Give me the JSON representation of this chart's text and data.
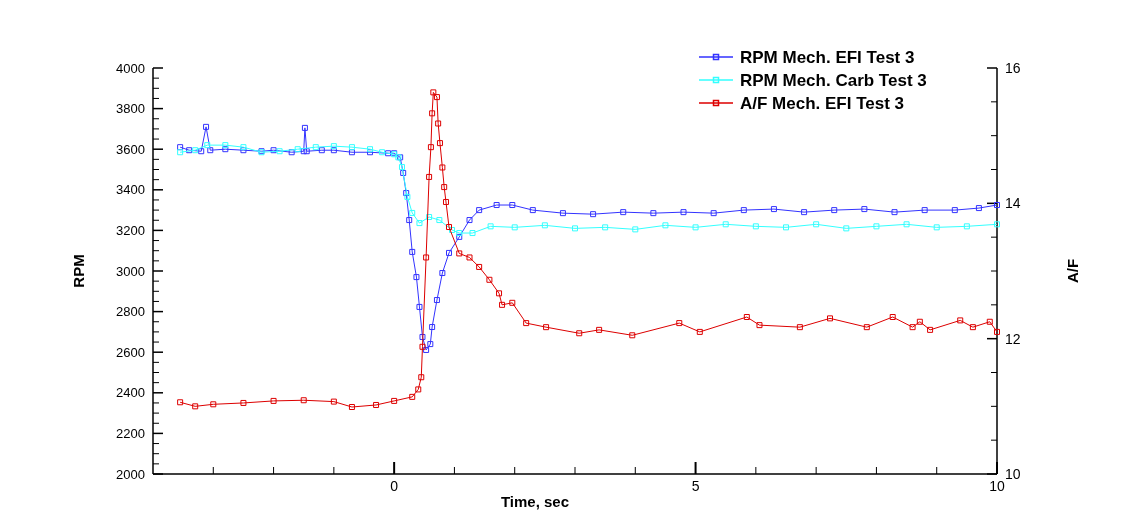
{
  "chart_data": {
    "type": "line",
    "xlabel": "Time, sec",
    "ylabel": "RPM",
    "y2label": "A/F",
    "xlim": [
      -4,
      10
    ],
    "xticks": [
      {
        "value": -3,
        "label": null
      },
      {
        "value": -2,
        "label": null
      },
      {
        "value": -1,
        "label": null
      },
      0,
      {
        "value": 1,
        "label": null
      },
      {
        "value": 2,
        "label": null
      },
      {
        "value": 3,
        "label": null
      },
      {
        "value": 4,
        "label": null
      },
      5,
      {
        "value": 6,
        "label": null
      },
      {
        "value": 7,
        "label": null
      },
      {
        "value": 8,
        "label": null
      },
      {
        "value": 9,
        "label": null
      },
      10
    ],
    "ylim": [
      2000,
      4000
    ],
    "yticks": [
      2000,
      {
        "value": 2050,
        "label": null
      },
      {
        "value": 2100,
        "label": null
      },
      {
        "value": 2150,
        "label": null
      },
      2200,
      {
        "value": 2250,
        "label": null
      },
      {
        "value": 2300,
        "label": null
      },
      {
        "value": 2350,
        "label": null
      },
      2400,
      {
        "value": 2450,
        "label": null
      },
      {
        "value": 2500,
        "label": null
      },
      {
        "value": 2550,
        "label": null
      },
      2600,
      {
        "value": 2650,
        "label": null
      },
      {
        "value": 2700,
        "label": null
      },
      {
        "value": 2750,
        "label": null
      },
      2800,
      {
        "value": 2850,
        "label": null
      },
      {
        "value": 2900,
        "label": null
      },
      {
        "value": 2950,
        "label": null
      },
      3000,
      {
        "value": 3050,
        "label": null
      },
      {
        "value": 3100,
        "label": null
      },
      {
        "value": 3150,
        "label": null
      },
      3200,
      {
        "value": 3250,
        "label": null
      },
      {
        "value": 3300,
        "label": null
      },
      {
        "value": 3350,
        "label": null
      },
      3400,
      {
        "value": 3450,
        "label": null
      },
      {
        "value": 3500,
        "label": null
      },
      {
        "value": 3550,
        "label": null
      },
      3600,
      {
        "value": 3650,
        "label": null
      },
      {
        "value": 3700,
        "label": null
      },
      {
        "value": 3750,
        "label": null
      },
      3800,
      {
        "value": 3850,
        "label": null
      },
      {
        "value": 3900,
        "label": null
      },
      {
        "value": 3950,
        "label": null
      },
      4000
    ],
    "y2lim": [
      10,
      16
    ],
    "y2ticks": [
      10,
      {
        "value": 10.5,
        "label": null
      },
      {
        "value": 11,
        "label": null
      },
      {
        "value": 11.5,
        "label": null
      },
      12,
      {
        "value": 12.5,
        "label": null
      },
      {
        "value": 13,
        "label": null
      },
      {
        "value": 13.5,
        "label": null
      },
      14,
      {
        "value": 14.5,
        "label": null
      },
      {
        "value": 15,
        "label": null
      },
      {
        "value": 15.5,
        "label": null
      },
      16
    ],
    "grid": false,
    "legend": "top right",
    "marker": "square",
    "line_style": "solid",
    "series": [
      {
        "name": "RPM Mech. EFI Test 3",
        "color": "#3333ff",
        "x": [
          -3.55,
          -3.4,
          -3.2,
          -3.12,
          -3.05,
          -2.8,
          -2.5,
          -2.2,
          -2.0,
          -1.7,
          -1.5,
          -1.48,
          -1.45,
          -1.2,
          -1.0,
          -0.7,
          -0.4,
          -0.1,
          0.0,
          0.1,
          0.15,
          0.2,
          0.25,
          0.3,
          0.37,
          0.42,
          0.47,
          0.53,
          0.6,
          0.63,
          0.71,
          0.8,
          0.91,
          1.08,
          1.25,
          1.41,
          1.7,
          1.96,
          2.3,
          2.8,
          3.3,
          3.8,
          4.3,
          4.8,
          5.3,
          5.8,
          6.3,
          6.8,
          7.3,
          7.8,
          8.3,
          8.8,
          9.3,
          9.7,
          10
        ],
        "values": [
          3610,
          3595,
          3590,
          3710,
          3595,
          3600,
          3595,
          3590,
          3595,
          3585,
          3590,
          3705,
          3590,
          3595,
          3595,
          3585,
          3585,
          3580,
          3580,
          3560,
          3483,
          3384,
          3251,
          3094,
          2970,
          2823,
          2675,
          2611,
          2640,
          2724,
          2857,
          2990,
          3089,
          3168,
          3251,
          3300,
          3325,
          3325,
          3300,
          3285,
          3280,
          3290,
          3285,
          3290,
          3285,
          3300,
          3305,
          3290,
          3300,
          3305,
          3290,
          3300,
          3300,
          3310,
          3325
        ]
      },
      {
        "name": "RPM Mech. Carb Test 3",
        "color": "#33ffff",
        "x": [
          -3.55,
          -3.3,
          -3.1,
          -2.8,
          -2.5,
          -2.2,
          -1.9,
          -1.6,
          -1.3,
          -1.0,
          -0.7,
          -0.4,
          -0.2,
          0.0,
          0.07,
          0.13,
          0.22,
          0.3,
          0.42,
          0.58,
          0.75,
          0.96,
          1.08,
          1.3,
          1.6,
          2.0,
          2.5,
          3.0,
          3.5,
          4.0,
          4.5,
          5.0,
          5.5,
          6.0,
          6.5,
          7.0,
          7.5,
          8.0,
          8.5,
          9.0,
          9.5,
          10
        ],
        "values": [
          3585,
          3595,
          3620,
          3620,
          3610,
          3585,
          3590,
          3600,
          3610,
          3615,
          3610,
          3600,
          3585,
          3575,
          3560,
          3512,
          3365,
          3286,
          3236,
          3266,
          3251,
          3202,
          3187,
          3187,
          3220,
          3215,
          3225,
          3210,
          3215,
          3205,
          3225,
          3215,
          3230,
          3220,
          3215,
          3230,
          3210,
          3220,
          3230,
          3215,
          3220,
          3230
        ]
      },
      {
        "name": "A/F Mech. EFI Test 3",
        "color": "#dd0000",
        "axis": "y2",
        "x": [
          -3.55,
          -3.3,
          -3.0,
          -2.5,
          -2.0,
          -1.5,
          -1.0,
          -0.7,
          -0.3,
          0.0,
          0.3,
          0.4,
          0.45,
          0.47,
          0.53,
          0.58,
          0.61,
          0.63,
          0.65,
          0.71,
          0.73,
          0.76,
          0.8,
          0.83,
          0.86,
          0.91,
          1.08,
          1.25,
          1.41,
          1.58,
          1.74,
          1.79,
          1.96,
          2.19,
          2.52,
          3.07,
          3.4,
          3.95,
          4.73,
          5.07,
          5.85,
          6.06,
          6.73,
          7.23,
          7.84,
          8.27,
          8.6,
          8.72,
          8.89,
          9.39,
          9.6,
          9.88,
          10
        ],
        "values": [
          11.06,
          11.0,
          11.03,
          11.05,
          11.08,
          11.09,
          11.07,
          10.99,
          11.02,
          11.08,
          11.14,
          11.25,
          11.43,
          11.88,
          13.2,
          14.39,
          14.83,
          15.33,
          15.64,
          15.57,
          15.18,
          14.89,
          14.53,
          14.24,
          14.02,
          13.65,
          13.26,
          13.2,
          13.06,
          12.87,
          12.67,
          12.5,
          12.53,
          12.23,
          12.17,
          12.08,
          12.13,
          12.05,
          12.23,
          12.1,
          12.32,
          12.2,
          12.17,
          12.3,
          12.17,
          12.32,
          12.17,
          12.25,
          12.13,
          12.27,
          12.17,
          12.25,
          12.1
        ]
      }
    ]
  }
}
